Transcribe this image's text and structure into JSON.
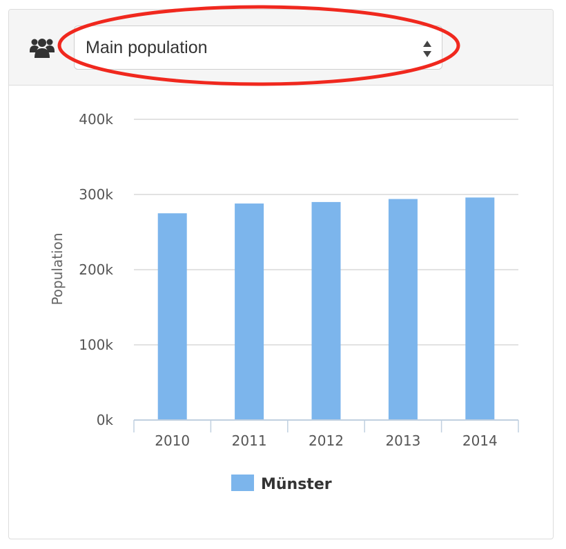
{
  "population_select": {
    "selected": "Main population",
    "icon": "users-icon"
  },
  "annotation": {
    "color": "#f0281e"
  },
  "chart_data": {
    "type": "bar",
    "categories": [
      "2010",
      "2011",
      "2012",
      "2013",
      "2014"
    ],
    "series": [
      {
        "name": "Münster",
        "values": [
          275000,
          288000,
          290000,
          294000,
          296000
        ],
        "color": "#7cb5ec"
      }
    ],
    "ylabel": "Population",
    "xlabel": "",
    "ylim": [
      0,
      400000
    ],
    "y_ticks": [
      {
        "value": 0,
        "label": "0k"
      },
      {
        "value": 100000,
        "label": "100k"
      },
      {
        "value": 200000,
        "label": "200k"
      },
      {
        "value": 300000,
        "label": "300k"
      },
      {
        "value": 400000,
        "label": "400k"
      }
    ],
    "grid": true,
    "legend_position": "bottom-center"
  }
}
